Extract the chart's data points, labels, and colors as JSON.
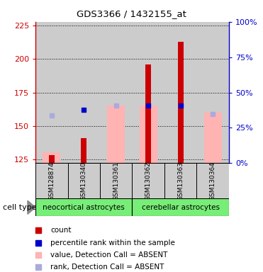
{
  "title": "GDS3366 / 1432155_at",
  "samples": [
    "GSM128874",
    "GSM130340",
    "GSM130361",
    "GSM130362",
    "GSM130363",
    "GSM130364"
  ],
  "ylim_left": [
    122,
    228
  ],
  "ylim_right": [
    0,
    100
  ],
  "yticks_left": [
    125,
    150,
    175,
    200,
    225
  ],
  "yticks_right": [
    0,
    25,
    50,
    75,
    100
  ],
  "ybase": 122,
  "red_bar_tops": [
    128,
    141,
    null,
    196,
    213,
    null
  ],
  "pink_bar_tops": [
    130,
    null,
    165,
    165,
    null,
    160
  ],
  "blue_square_y": [
    null,
    162,
    null,
    165,
    165,
    null
  ],
  "lightblue_square_y": [
    158,
    null,
    165,
    null,
    null,
    159
  ],
  "colors": {
    "red_bar": "#cc0000",
    "pink_bar": "#ffb3b3",
    "blue_square": "#0000cc",
    "lightblue_square": "#aaaadd",
    "left_axis": "#cc0000",
    "right_axis": "#0000cc",
    "cell_type_bg": "#77ee77",
    "sample_bg": "#cccccc",
    "white": "#ffffff"
  },
  "cell_type_labels": [
    "neocortical astrocytes",
    "cerebellar astrocytes"
  ],
  "cell_type_ranges": [
    [
      0,
      3
    ],
    [
      3,
      6
    ]
  ],
  "legend_items": [
    {
      "label": "count",
      "color": "#cc0000"
    },
    {
      "label": "percentile rank within the sample",
      "color": "#0000cc"
    },
    {
      "label": "value, Detection Call = ABSENT",
      "color": "#ffb3b3"
    },
    {
      "label": "rank, Detection Call = ABSENT",
      "color": "#aaaadd"
    }
  ]
}
